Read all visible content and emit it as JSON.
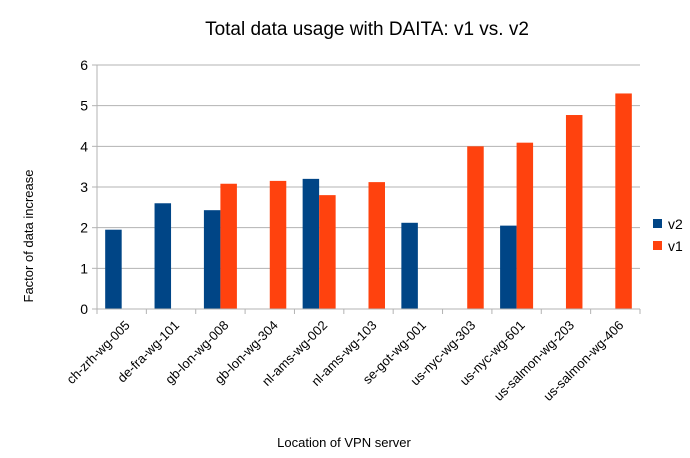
{
  "chart_data": {
    "type": "bar",
    "title": "Total data usage with DAITA: v1 vs. v2",
    "xlabel": "Location of VPN server",
    "ylabel": "Factor of data increase",
    "ylim": [
      0,
      6
    ],
    "yticks": [
      "0",
      "1",
      "2",
      "3",
      "4",
      "5",
      "6"
    ],
    "grid": "horizontal",
    "legend_position": "right",
    "categories": [
      "ch-zrh-wg-005",
      "de-fra-wg-101",
      "gb-lon-wg-008",
      "gb-lon-wg-304",
      "nl-ams-wg-002",
      "nl-ams-wg-103",
      "se-got-wg-001",
      "us-nyc-wg-303",
      "us-nyc-wg-601",
      "us-salmon-wg-203",
      "us-salmon-wg-406"
    ],
    "series": [
      {
        "name": "v2",
        "color": "#004586",
        "values": [
          1.95,
          2.6,
          2.43,
          null,
          3.2,
          null,
          2.12,
          null,
          2.05,
          null,
          null
        ]
      },
      {
        "name": "v1",
        "color": "#ff420e",
        "values": [
          null,
          null,
          3.08,
          3.15,
          2.8,
          3.12,
          null,
          4.0,
          4.09,
          4.77,
          5.3
        ]
      }
    ]
  }
}
